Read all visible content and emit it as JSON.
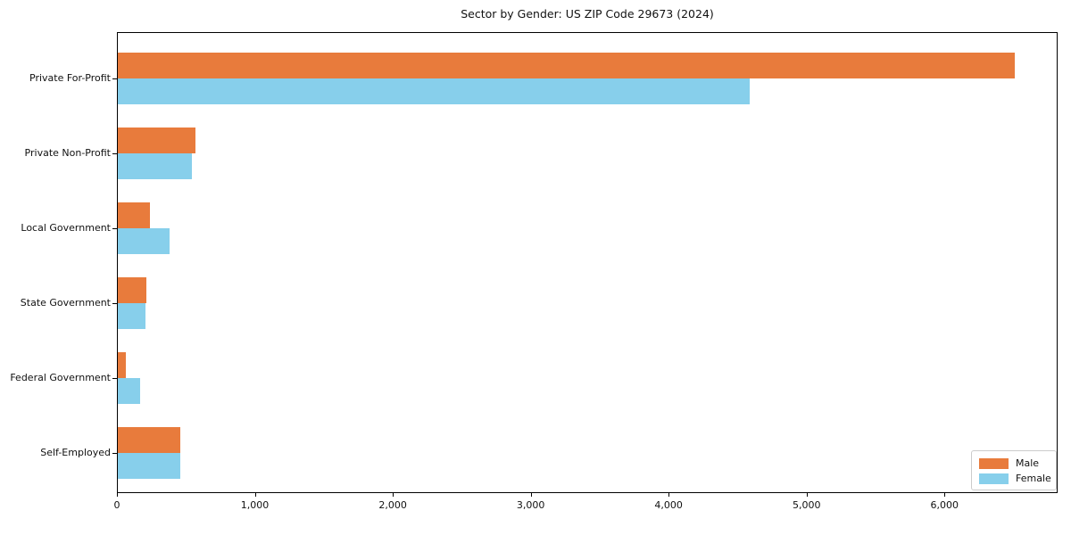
{
  "chart_data": {
    "type": "bar",
    "orientation": "horizontal",
    "title": "Sector by Gender: US ZIP Code 29673 (2024)",
    "categories": [
      "Private For-Profit",
      "Private Non-Profit",
      "Local Government",
      "State Government",
      "Federal Government",
      "Self-Employed"
    ],
    "series": [
      {
        "name": "Male",
        "color": "#e87b3c",
        "values": [
          6500,
          560,
          230,
          210,
          60,
          450
        ]
      },
      {
        "name": "Female",
        "color": "#87cfeb",
        "values": [
          4580,
          540,
          375,
          200,
          160,
          455
        ]
      }
    ],
    "xlim": [
      0,
      6820
    ],
    "xticks": [
      0,
      1000,
      2000,
      3000,
      4000,
      5000,
      6000
    ],
    "xtick_labels": [
      "0",
      "1,000",
      "2,000",
      "3,000",
      "4,000",
      "5,000",
      "6,000"
    ],
    "legend": {
      "position": "lower right",
      "entries": [
        "Male",
        "Female"
      ]
    },
    "grid": false,
    "background_color": "#ffffff",
    "frame_color": "#000000"
  }
}
